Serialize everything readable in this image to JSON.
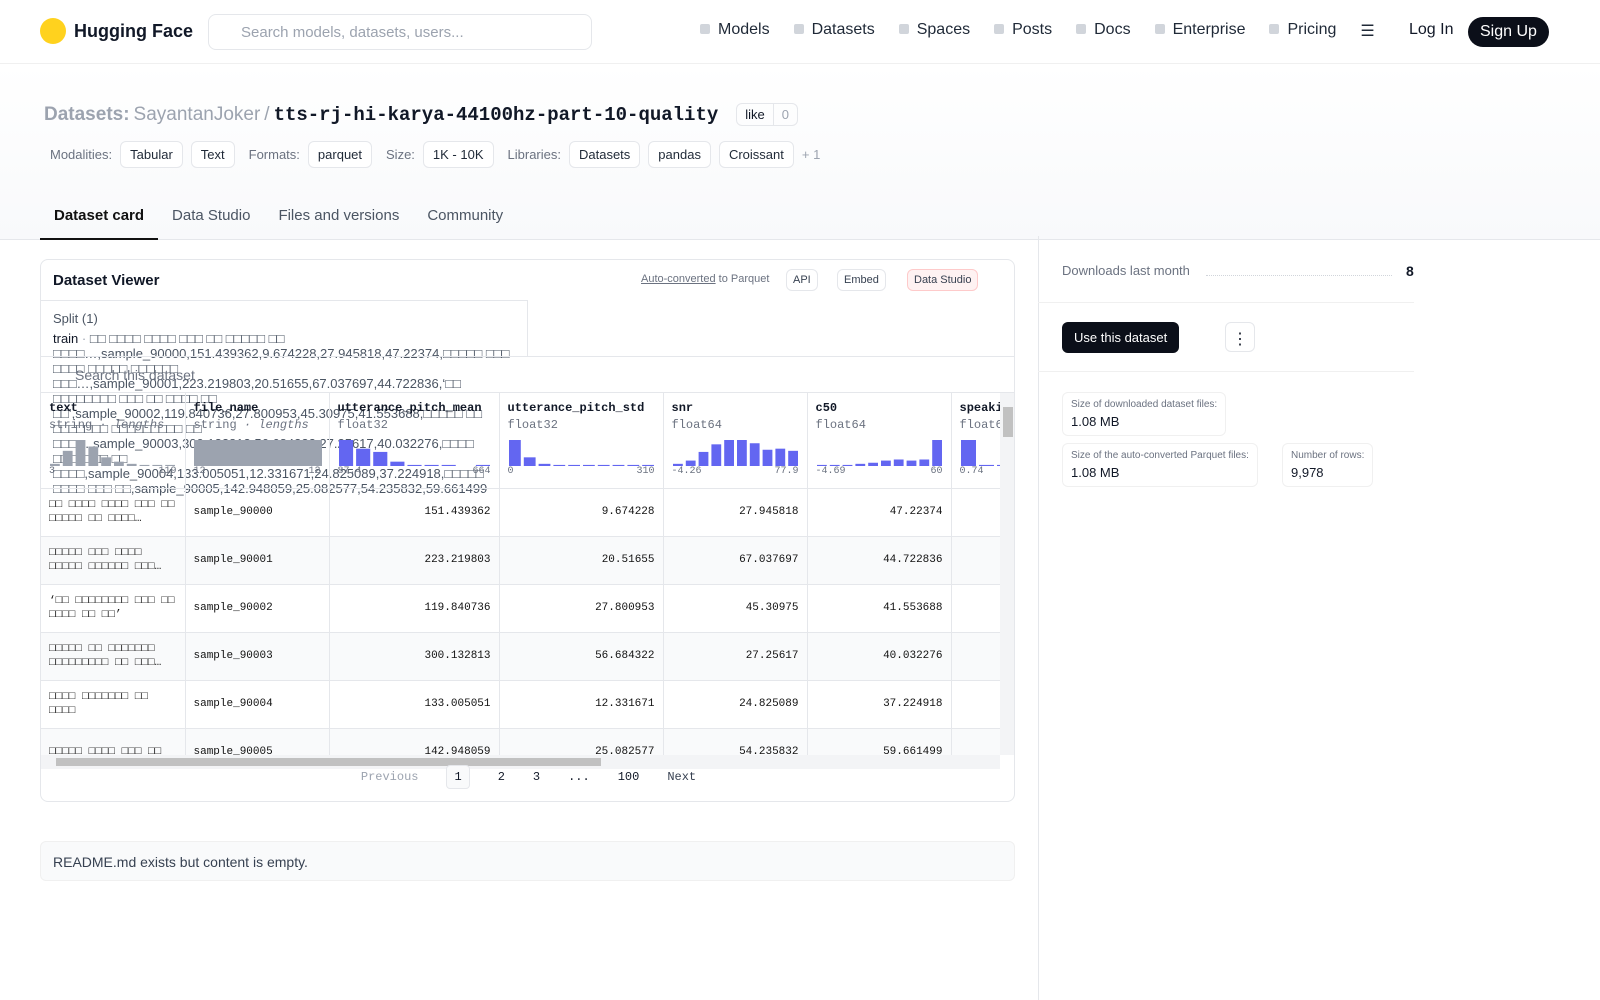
{
  "nav": {
    "logo": "Hugging Face",
    "search": "Search models, datasets, users...",
    "links": [
      "Models",
      "Datasets",
      "Spaces",
      "Posts",
      "Docs",
      "Enterprise",
      "Pricing"
    ],
    "login": "Log In",
    "signup": "Sign Up"
  },
  "header": {
    "crumb": "Datasets:",
    "owner": "SayantanJoker",
    "sep": "/",
    "name": "tts-rj-hi-karya-44100hz-part-10-quality",
    "like": "like",
    "likes": "0",
    "tag_groups": [
      {
        "label": "Modalities:",
        "tags": [
          "Tabular",
          "Text"
        ]
      },
      {
        "label": "Formats:",
        "tags": [
          "parquet"
        ]
      },
      {
        "label": "Size:",
        "tags": [
          "1K - 10K"
        ]
      },
      {
        "label": "Libraries:",
        "tags": [
          "Datasets",
          "pandas",
          "Croissant"
        ]
      }
    ],
    "more": "+ 1"
  },
  "tabs": [
    "Dataset card",
    "Data Studio",
    "Files and versions",
    "Community"
  ],
  "viewer": {
    "title": "Dataset Viewer",
    "auto": "Auto-converted",
    "auto_rest": "to Parquet",
    "api": "API",
    "embed": "Embed",
    "studio": "Data Studio",
    "split_label": "Split (1)",
    "split": "train",
    "dot": "·",
    "rows": [
      [
        "□□ □□□□ □□□□ □□□ □□ □□□□□ □□ □□□□…",
        "sample_90000",
        "151.439362",
        "9.674228",
        "27.945818",
        "47.22374"
      ],
      [
        "□□□□□ □□□ □□□□ □□□□□ □□□□□□ □□□…",
        "sample_90001",
        "223.219803",
        "20.51655",
        "67.037697",
        "44.722836"
      ],
      [
        "‘□□ □□□□□□□□ □□□ □□ □□□□ □□ □□’",
        "sample_90002",
        "119.840736",
        "27.800953",
        "45.30975",
        "41.553688"
      ],
      [
        "□□□□□ □□ □□□□□□□ □□□□□□□□□ □□ □□□…",
        "sample_90003",
        "300.132813",
        "56.684322",
        "27.25617",
        "40.032276"
      ],
      [
        "□□□□ □□□□□□□ □□ □□□□",
        "sample_90004",
        "133.005051",
        "12.331671",
        "24.825089",
        "37.224918"
      ],
      [
        "□□□□□ □□□□ □□□ □□",
        "sample_90005",
        "142.948059",
        "25.082577",
        "54.235832",
        "59.661499"
      ]
    ],
    "search": "Search this dataset",
    "columns": [
      {
        "name": "text",
        "type": "string",
        "hint": "· lengths",
        "min": "3",
        "max": "119",
        "color": "#9ca3af",
        "hist": [
          2,
          14,
          24,
          18,
          8,
          4,
          2,
          1,
          1,
          1
        ]
      },
      {
        "name": "file_name",
        "type": "string",
        "hint": "· lengths",
        "min": "12",
        "max": "12",
        "color": "#9ca3af",
        "hist": [
          24
        ]
      },
      {
        "name": "utterance_pitch_mean",
        "type": "float32",
        "min": "87.4",
        "max": "664",
        "color": "#6366f1",
        "hist": [
          24,
          16,
          13,
          4,
          1,
          1,
          1,
          0,
          1
        ]
      },
      {
        "name": "utterance_pitch_std",
        "type": "float32",
        "min": "0",
        "max": "310",
        "color": "#6366f1",
        "hist": [
          24,
          8,
          2,
          1,
          1,
          1,
          1,
          1,
          1,
          1
        ]
      },
      {
        "name": "snr",
        "type": "float64",
        "min": "-4.26",
        "max": "77.9",
        "color": "#6366f1",
        "hist": [
          2,
          5,
          13,
          20,
          24,
          24,
          21,
          15,
          16,
          14
        ]
      },
      {
        "name": "c50",
        "type": "float64",
        "min": "-4.69",
        "max": "60",
        "color": "#6366f1",
        "hist": [
          1,
          1,
          1,
          2,
          3,
          5,
          6,
          5,
          6,
          24
        ]
      },
      {
        "name": "speaki",
        "type": "float6",
        "min": "0.74",
        "color": "#6366f1",
        "hist": [
          24,
          1,
          1
        ]
      }
    ],
    "pages": [
      "Previous",
      "1",
      "2",
      "3",
      "...",
      "100",
      "Next"
    ]
  },
  "readme": "README.md exists but content is empty.",
  "sidebar": {
    "downloads_label": "Downloads last month",
    "downloads": "8",
    "use": "Use this dataset",
    "stats": [
      {
        "label": "Size of downloaded dataset files:",
        "value": "1.08 MB"
      },
      {
        "label": "Size of the auto-converted Parquet files:",
        "value": "1.08 MB"
      },
      {
        "label": "Number of rows:",
        "value": "9,978"
      }
    ]
  }
}
